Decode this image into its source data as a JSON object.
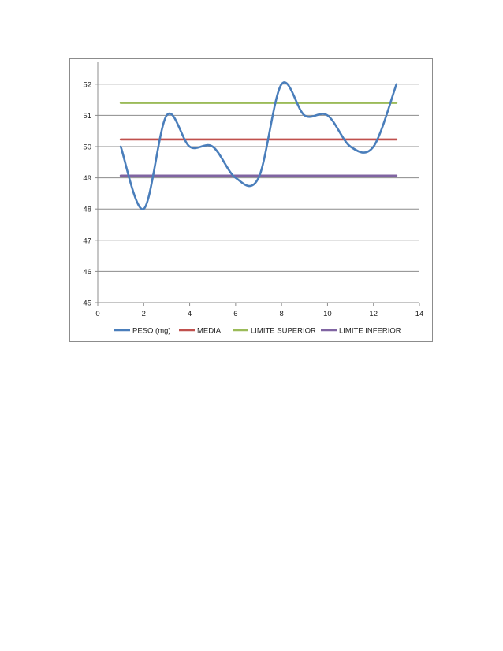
{
  "chart_data": {
    "type": "line",
    "title": "",
    "xlabel": "",
    "ylabel": "",
    "xlim": [
      0,
      14
    ],
    "ylim": [
      45,
      52.5
    ],
    "x_ticks": [
      "0",
      "2",
      "4",
      "6",
      "8",
      "10",
      "12",
      "14"
    ],
    "y_ticks": [
      "45",
      "46",
      "47",
      "48",
      "49",
      "50",
      "51",
      "52"
    ],
    "grid": "horizontal",
    "legend_position": "bottom",
    "series": [
      {
        "name": "PESO (mg)",
        "color": "#4a7ebb",
        "smooth": true,
        "x": [
          1,
          2,
          3,
          4,
          5,
          6,
          7,
          8,
          9,
          10,
          11,
          12,
          13
        ],
        "y": [
          50,
          48,
          51,
          50,
          50,
          49,
          49,
          52,
          51,
          51,
          50,
          50,
          52
        ]
      },
      {
        "name": "MEDIA",
        "color": "#c0504d",
        "smooth": false,
        "x": [
          1,
          13
        ],
        "y": [
          50.23,
          50.23
        ]
      },
      {
        "name": "LIMITE SUPERIOR",
        "color": "#9bbb59",
        "smooth": false,
        "x": [
          1,
          13
        ],
        "y": [
          51.4,
          51.4
        ]
      },
      {
        "name": "LIMITE INFERIOR",
        "color": "#8064a2",
        "smooth": false,
        "x": [
          1,
          13
        ],
        "y": [
          49.07,
          49.07
        ]
      }
    ]
  }
}
